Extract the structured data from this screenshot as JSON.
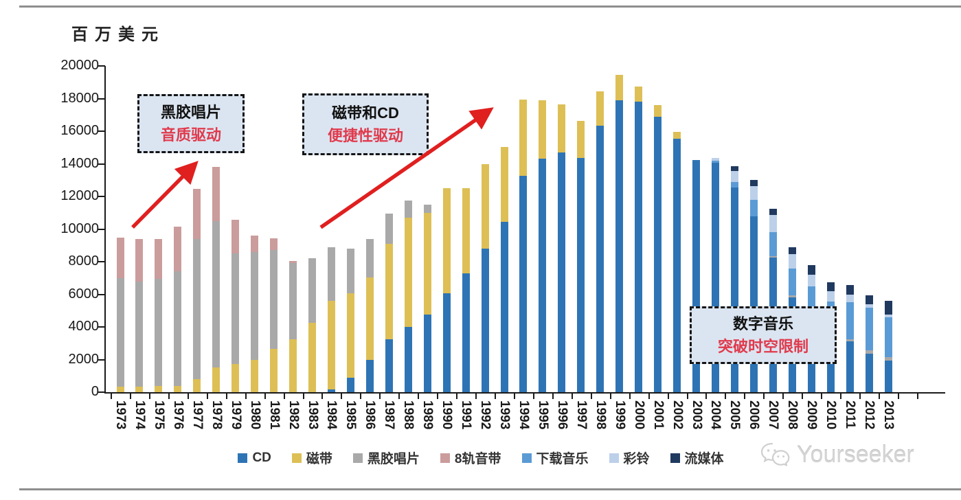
{
  "page": {
    "unit_label": "百万美元"
  },
  "chart_data": {
    "type": "bar",
    "subtype": "stacked-column",
    "title": "",
    "ylabel": "百万美元",
    "ylim": [
      0,
      20000
    ],
    "ytick_step": 2000,
    "grid": false,
    "legend_position": "bottom-center",
    "categories": [
      1973,
      1974,
      1975,
      1976,
      1977,
      1978,
      1979,
      1980,
      1981,
      1982,
      1983,
      1984,
      1985,
      1986,
      1987,
      1988,
      1989,
      1990,
      1991,
      1992,
      1993,
      1994,
      1995,
      1996,
      1997,
      1998,
      1999,
      2000,
      2001,
      2002,
      2003,
      2004,
      2005,
      2006,
      2007,
      2008,
      2009,
      2010,
      2011,
      2012,
      2013
    ],
    "stack_order_bottom_to_top": [
      "CD",
      "磁带",
      "黑胶唱片",
      "8轨音带",
      "下载音乐",
      "彩铃",
      "流媒体"
    ],
    "series": [
      {
        "name": "CD",
        "color": "#2e74b5",
        "values": [
          0,
          0,
          0,
          0,
          0,
          0,
          0,
          0,
          0,
          0,
          0,
          150,
          900,
          2000,
          3250,
          4000,
          4750,
          6050,
          7300,
          8800,
          10450,
          13250,
          14300,
          14700,
          14350,
          16350,
          17900,
          17800,
          16900,
          15550,
          14250,
          14050,
          12550,
          10800,
          8250,
          5800,
          4550,
          3150,
          3100,
          2350,
          1950
        ]
      },
      {
        "name": "磁带",
        "color": "#ddbf56",
        "values": [
          325,
          325,
          400,
          400,
          800,
          1500,
          1725,
          2000,
          2650,
          3250,
          4250,
          5450,
          5150,
          5050,
          5850,
          6700,
          6250,
          6450,
          5200,
          5200,
          4600,
          4700,
          3600,
          2950,
          2300,
          2100,
          1550,
          950,
          700,
          400,
          0,
          0,
          0,
          0,
          0,
          0,
          0,
          0,
          0,
          0,
          0
        ]
      },
      {
        "name": "黑胶唱片",
        "color": "#a9a9a9",
        "values": [
          6650,
          6450,
          6550,
          7000,
          8600,
          9000,
          6800,
          6600,
          6050,
          4650,
          3950,
          3300,
          2750,
          2350,
          1850,
          1050,
          500,
          0,
          0,
          0,
          0,
          0,
          0,
          0,
          0,
          0,
          0,
          0,
          0,
          0,
          0,
          0,
          0,
          0,
          100,
          150,
          150,
          150,
          150,
          200,
          200
        ]
      },
      {
        "name": "8轨音带",
        "color": "#cb9c9c",
        "values": [
          2500,
          2600,
          2450,
          2750,
          3050,
          3300,
          2050,
          1000,
          750,
          150,
          0,
          0,
          0,
          0,
          0,
          0,
          0,
          0,
          0,
          0,
          0,
          0,
          0,
          0,
          0,
          0,
          0,
          0,
          0,
          0,
          0,
          0,
          0,
          0,
          0,
          0,
          0,
          0,
          0,
          0,
          0
        ]
      },
      {
        "name": "下载音乐",
        "color": "#5b9bd5",
        "values": [
          0,
          0,
          0,
          0,
          0,
          0,
          0,
          0,
          0,
          0,
          0,
          0,
          0,
          0,
          0,
          0,
          0,
          0,
          0,
          0,
          0,
          0,
          0,
          0,
          0,
          0,
          0,
          0,
          0,
          0,
          0,
          150,
          350,
          1000,
          1450,
          1650,
          1800,
          2250,
          2250,
          2650,
          2450
        ]
      },
      {
        "name": "彩铃",
        "color": "#bcd0ea",
        "values": [
          0,
          0,
          0,
          0,
          0,
          0,
          0,
          0,
          0,
          0,
          0,
          0,
          0,
          0,
          0,
          0,
          0,
          0,
          0,
          0,
          0,
          0,
          0,
          0,
          0,
          0,
          0,
          0,
          0,
          0,
          0,
          150,
          650,
          850,
          1050,
          850,
          700,
          650,
          500,
          200,
          150
        ]
      },
      {
        "name": "流媒体",
        "color": "#20395f",
        "values": [
          0,
          0,
          0,
          0,
          0,
          0,
          0,
          0,
          0,
          0,
          0,
          0,
          0,
          0,
          0,
          0,
          0,
          0,
          0,
          0,
          0,
          0,
          0,
          0,
          0,
          0,
          0,
          0,
          0,
          0,
          0,
          0,
          300,
          350,
          400,
          450,
          600,
          550,
          550,
          550,
          850
        ]
      }
    ],
    "annotations": [
      {
        "line1": "黑胶唱片",
        "line2": "音质驱动"
      },
      {
        "line1": "磁带和CD",
        "line2": "便捷性驱动"
      },
      {
        "line1": "数字音乐",
        "line2": "突破时空限制"
      }
    ],
    "arrow_color": "#e01f1f"
  },
  "legend": {
    "items": [
      {
        "label": "CD",
        "color": "#2e74b5"
      },
      {
        "label": "磁带",
        "color": "#ddbf56"
      },
      {
        "label": "黑胶唱片",
        "color": "#a9a9a9"
      },
      {
        "label": "8轨音带",
        "color": "#cb9c9c"
      },
      {
        "label": "下载音乐",
        "color": "#5b9bd5"
      },
      {
        "label": "彩铃",
        "color": "#bcd0ea"
      },
      {
        "label": "流媒体",
        "color": "#20395f"
      }
    ]
  },
  "watermark": {
    "text": "Yourseeker"
  }
}
